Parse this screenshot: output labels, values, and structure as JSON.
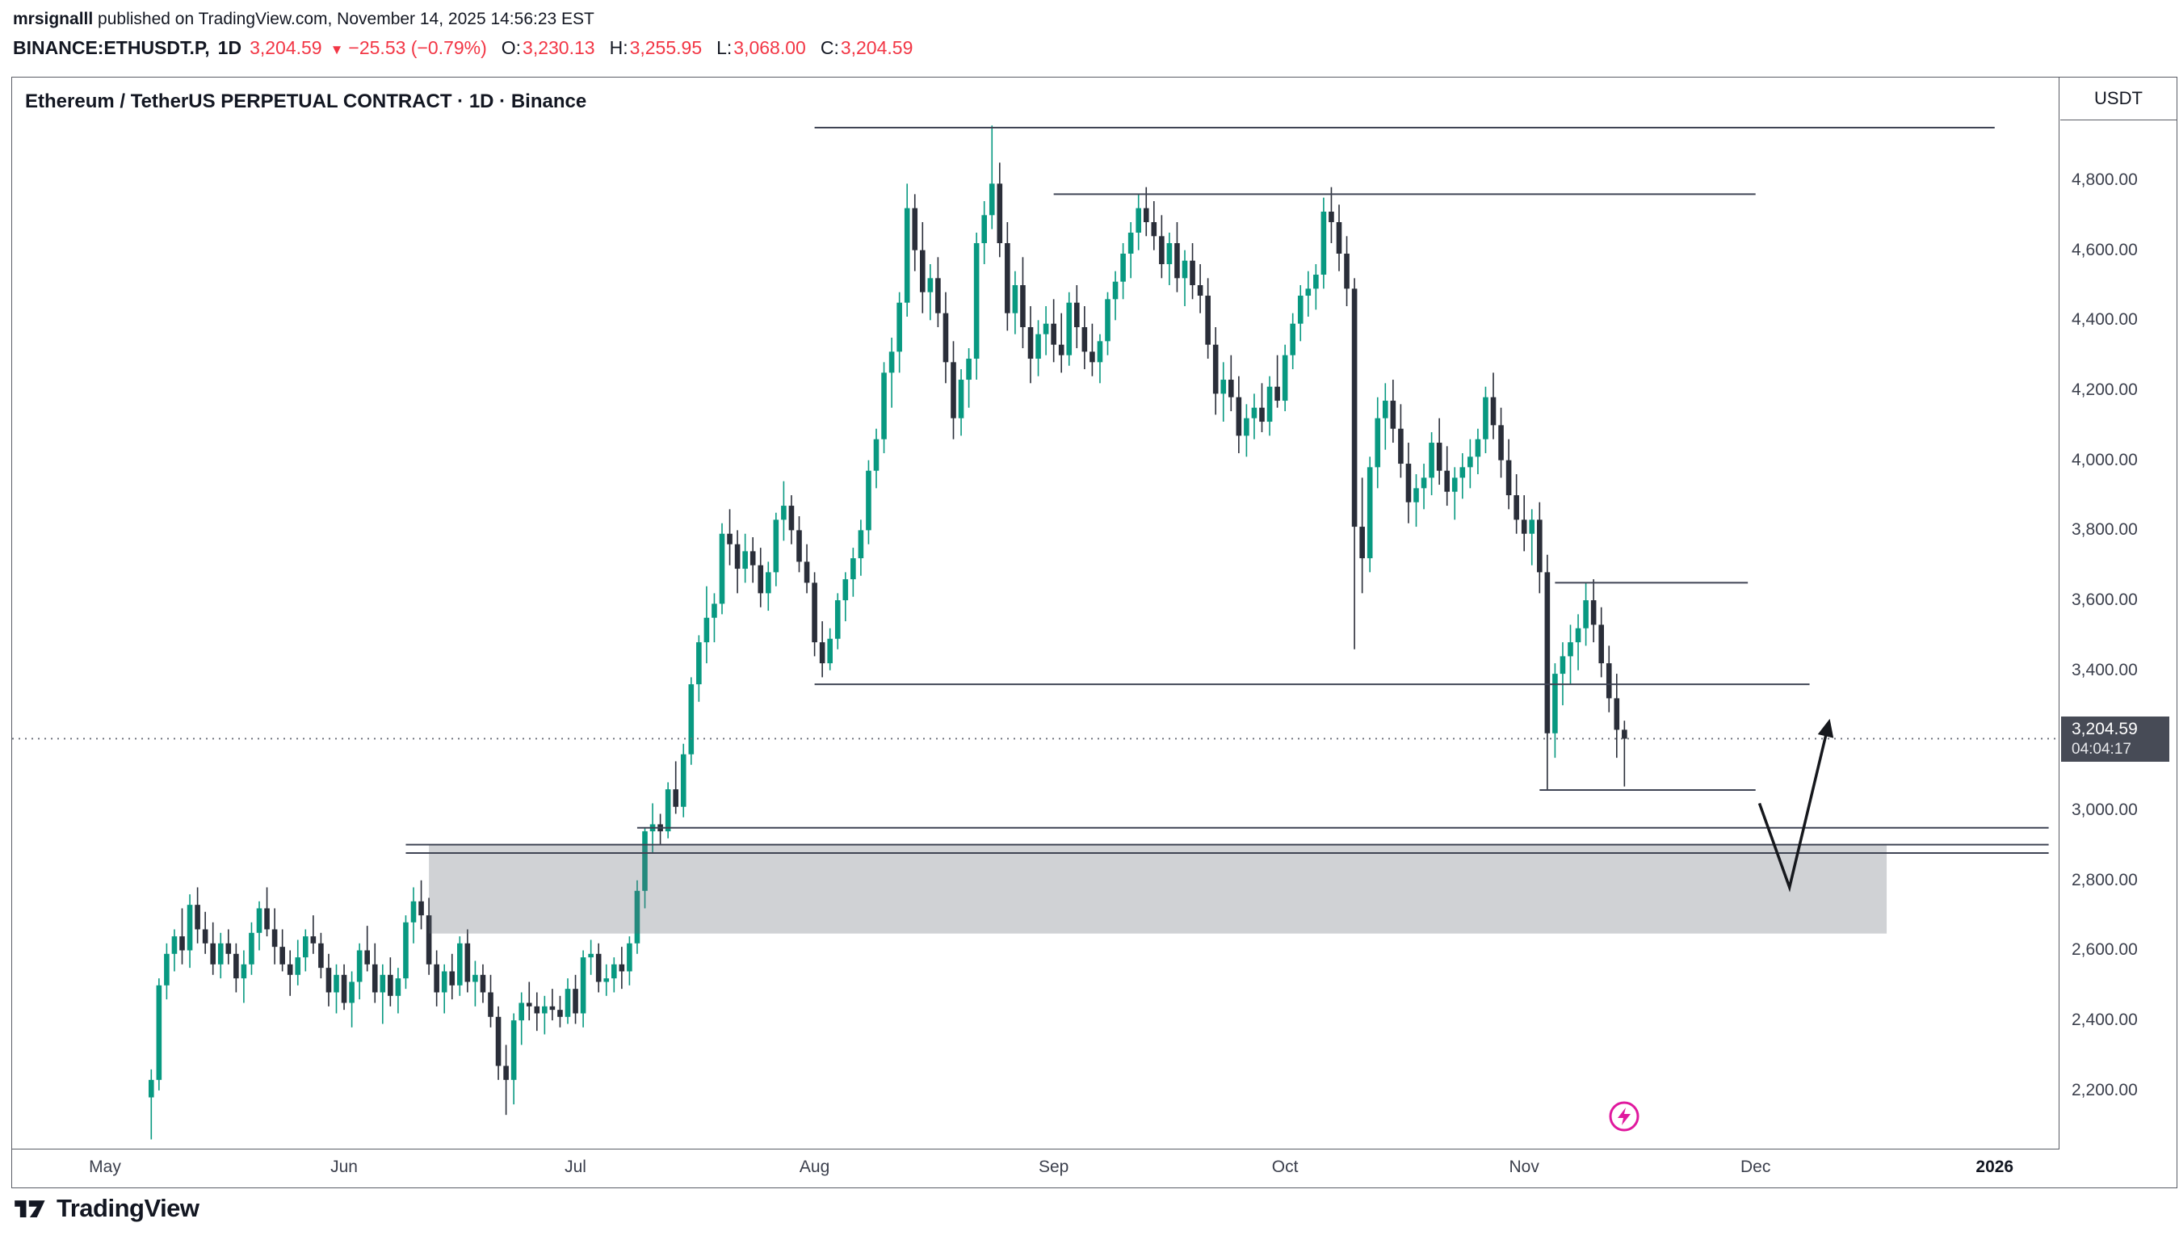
{
  "header": {
    "author": "mrsignalll",
    "published": " published on TradingView.com, November 14, 2025 14:56:23 EST",
    "symbol": "BINANCE:ETHUSDT.P,",
    "timeframe": "1D",
    "price": "3,204.59",
    "arrow": "▼",
    "change": "−25.53 (−0.79%)",
    "o_label": "O:",
    "o": "3,230.13",
    "h_label": "H:",
    "h": "3,255.95",
    "l_label": "L:",
    "l": "3,068.00",
    "c_label": "C:",
    "c": "3,204.59"
  },
  "chart": {
    "title": "Ethereum / TetherUS PERPETUAL CONTRACT · 1D · Binance",
    "unit": "USDT",
    "price_tag": {
      "price": "3,204.59",
      "countdown": "04:04:17"
    },
    "y_axis": [
      {
        "price": 4800,
        "label": "4,800.00"
      },
      {
        "price": 4600,
        "label": "4,600.00"
      },
      {
        "price": 4400,
        "label": "4,400.00"
      },
      {
        "price": 4200,
        "label": "4,200.00"
      },
      {
        "price": 4000,
        "label": "4,000.00"
      },
      {
        "price": 3800,
        "label": "3,800.00"
      },
      {
        "price": 3600,
        "label": "3,600.00"
      },
      {
        "price": 3400,
        "label": "3,400.00"
      },
      {
        "price": 3000,
        "label": "3,000.00"
      },
      {
        "price": 2800,
        "label": "2,800.00"
      },
      {
        "price": 2600,
        "label": "2,600.00"
      },
      {
        "price": 2400,
        "label": "2,400.00"
      },
      {
        "price": 2200,
        "label": "2,200.00"
      }
    ],
    "x_axis": [
      {
        "label": "May",
        "day": 0
      },
      {
        "label": "Jun",
        "day": 31
      },
      {
        "label": "Jul",
        "day": 61
      },
      {
        "label": "Aug",
        "day": 92
      },
      {
        "label": "Sep",
        "day": 123
      },
      {
        "label": "Oct",
        "day": 153
      },
      {
        "label": "Nov",
        "day": 184
      },
      {
        "label": "Dec",
        "day": 214
      },
      {
        "label": "2026",
        "day": 245,
        "bold": true
      }
    ]
  },
  "footer": {
    "brand": "TradingView"
  },
  "chart_data": {
    "type": "candlestick",
    "symbol": "BINANCE:ETHUSDT.P",
    "interval": "1D",
    "title": "Ethereum / TetherUS PERPETUAL CONTRACT · 1D · Binance",
    "last": {
      "open": 3230.13,
      "high": 3255.95,
      "low": 3068.0,
      "close": 3204.59,
      "change": -25.53,
      "change_pct": -0.79
    },
    "ylim": [
      2050,
      5220
    ],
    "start_day": 6,
    "price_line": 3204.59,
    "colors": {
      "up": "#089981",
      "down": "#2a2e39",
      "level": "#3f4454",
      "zone": "rgba(100,105,115,0.30)",
      "arrow": "#16181d",
      "price_line": "#6a6d78",
      "tag_bg": "#474b56",
      "red": "#F23645",
      "sticker": "#e0189e"
    },
    "levels": [
      {
        "price": 4950,
        "d1": 92,
        "d2": 245
      },
      {
        "price": 4760,
        "d1": 123,
        "d2": 214
      },
      {
        "price": 3650,
        "d1": 188,
        "d2": 213
      },
      {
        "price": 3360,
        "d1": 92,
        "d2": 221
      },
      {
        "price": 3058,
        "d1": 186,
        "d2": 214
      },
      {
        "price": 2950,
        "d1": 69,
        "d2": 252
      },
      {
        "price": 2902,
        "d1": 39,
        "d2": 252
      },
      {
        "price": 2878,
        "d1": 39,
        "d2": 252
      }
    ],
    "zone": {
      "p1": 2900,
      "p2": 2648,
      "d1": 42,
      "d2": 231
    },
    "arrow": {
      "points": [
        [
          214.5,
          3020
        ],
        [
          218.4,
          2780
        ],
        [
          223.5,
          3250
        ]
      ]
    },
    "ohlc": [
      [
        2180,
        2260,
        2060,
        2230
      ],
      [
        2230,
        2520,
        2200,
        2500
      ],
      [
        2500,
        2620,
        2460,
        2590
      ],
      [
        2590,
        2660,
        2540,
        2640
      ],
      [
        2640,
        2720,
        2560,
        2600
      ],
      [
        2600,
        2760,
        2550,
        2730
      ],
      [
        2730,
        2780,
        2620,
        2660
      ],
      [
        2660,
        2710,
        2590,
        2620
      ],
      [
        2620,
        2680,
        2530,
        2560
      ],
      [
        2560,
        2650,
        2520,
        2620
      ],
      [
        2620,
        2660,
        2560,
        2590
      ],
      [
        2590,
        2620,
        2480,
        2520
      ],
      [
        2520,
        2600,
        2450,
        2560
      ],
      [
        2560,
        2680,
        2530,
        2650
      ],
      [
        2650,
        2740,
        2600,
        2720
      ],
      [
        2720,
        2780,
        2640,
        2660
      ],
      [
        2660,
        2720,
        2560,
        2610
      ],
      [
        2610,
        2660,
        2540,
        2560
      ],
      [
        2560,
        2600,
        2470,
        2530
      ],
      [
        2530,
        2630,
        2500,
        2580
      ],
      [
        2580,
        2660,
        2540,
        2640
      ],
      [
        2640,
        2700,
        2590,
        2620
      ],
      [
        2620,
        2650,
        2520,
        2550
      ],
      [
        2550,
        2590,
        2440,
        2480
      ],
      [
        2480,
        2560,
        2420,
        2530
      ],
      [
        2530,
        2560,
        2430,
        2450
      ],
      [
        2450,
        2540,
        2380,
        2510
      ],
      [
        2510,
        2620,
        2460,
        2600
      ],
      [
        2600,
        2670,
        2540,
        2560
      ],
      [
        2560,
        2620,
        2450,
        2480
      ],
      [
        2480,
        2560,
        2390,
        2530
      ],
      [
        2530,
        2580,
        2440,
        2470
      ],
      [
        2470,
        2550,
        2420,
        2520
      ],
      [
        2520,
        2700,
        2490,
        2680
      ],
      [
        2680,
        2780,
        2620,
        2740
      ],
      [
        2740,
        2800,
        2660,
        2700
      ],
      [
        2700,
        2750,
        2530,
        2560
      ],
      [
        2560,
        2600,
        2440,
        2480
      ],
      [
        2480,
        2560,
        2420,
        2540
      ],
      [
        2540,
        2590,
        2460,
        2500
      ],
      [
        2500,
        2640,
        2470,
        2620
      ],
      [
        2620,
        2660,
        2480,
        2510
      ],
      [
        2510,
        2570,
        2440,
        2530
      ],
      [
        2530,
        2560,
        2450,
        2480
      ],
      [
        2480,
        2530,
        2380,
        2410
      ],
      [
        2410,
        2440,
        2230,
        2270
      ],
      [
        2270,
        2330,
        2130,
        2230
      ],
      [
        2230,
        2420,
        2160,
        2400
      ],
      [
        2400,
        2480,
        2330,
        2450
      ],
      [
        2450,
        2510,
        2400,
        2440
      ],
      [
        2440,
        2480,
        2370,
        2420
      ],
      [
        2420,
        2470,
        2360,
        2440
      ],
      [
        2440,
        2490,
        2400,
        2430
      ],
      [
        2430,
        2470,
        2380,
        2410
      ],
      [
        2410,
        2520,
        2390,
        2490
      ],
      [
        2490,
        2530,
        2390,
        2420
      ],
      [
        2420,
        2600,
        2380,
        2580
      ],
      [
        2580,
        2630,
        2530,
        2590
      ],
      [
        2590,
        2620,
        2480,
        2510
      ],
      [
        2510,
        2560,
        2470,
        2520
      ],
      [
        2520,
        2580,
        2480,
        2560
      ],
      [
        2560,
        2610,
        2490,
        2540
      ],
      [
        2540,
        2640,
        2500,
        2620
      ],
      [
        2620,
        2800,
        2590,
        2770
      ],
      [
        2770,
        2950,
        2720,
        2940
      ],
      [
        2940,
        3020,
        2880,
        2960
      ],
      [
        2960,
        2990,
        2900,
        2940
      ],
      [
        2940,
        3080,
        2920,
        3060
      ],
      [
        3060,
        3140,
        2990,
        3010
      ],
      [
        3010,
        3190,
        2980,
        3160
      ],
      [
        3160,
        3380,
        3130,
        3360
      ],
      [
        3360,
        3500,
        3310,
        3480
      ],
      [
        3480,
        3640,
        3420,
        3550
      ],
      [
        3550,
        3620,
        3480,
        3590
      ],
      [
        3590,
        3820,
        3560,
        3790
      ],
      [
        3790,
        3860,
        3700,
        3760
      ],
      [
        3760,
        3800,
        3620,
        3690
      ],
      [
        3690,
        3790,
        3650,
        3740
      ],
      [
        3740,
        3780,
        3650,
        3700
      ],
      [
        3700,
        3750,
        3580,
        3620
      ],
      [
        3620,
        3710,
        3570,
        3680
      ],
      [
        3680,
        3850,
        3640,
        3830
      ],
      [
        3830,
        3940,
        3770,
        3870
      ],
      [
        3870,
        3900,
        3760,
        3800
      ],
      [
        3800,
        3840,
        3680,
        3710
      ],
      [
        3710,
        3760,
        3620,
        3650
      ],
      [
        3650,
        3680,
        3440,
        3480
      ],
      [
        3480,
        3540,
        3380,
        3420
      ],
      [
        3420,
        3520,
        3400,
        3490
      ],
      [
        3490,
        3620,
        3460,
        3600
      ],
      [
        3600,
        3680,
        3540,
        3660
      ],
      [
        3660,
        3750,
        3610,
        3720
      ],
      [
        3720,
        3830,
        3670,
        3800
      ],
      [
        3800,
        4000,
        3760,
        3970
      ],
      [
        3970,
        4090,
        3920,
        4060
      ],
      [
        4060,
        4280,
        4020,
        4250
      ],
      [
        4250,
        4350,
        4150,
        4310
      ],
      [
        4310,
        4480,
        4250,
        4450
      ],
      [
        4450,
        4790,
        4410,
        4720
      ],
      [
        4720,
        4760,
        4540,
        4600
      ],
      [
        4600,
        4680,
        4420,
        4480
      ],
      [
        4480,
        4560,
        4400,
        4520
      ],
      [
        4520,
        4580,
        4380,
        4420
      ],
      [
        4420,
        4480,
        4220,
        4280
      ],
      [
        4280,
        4340,
        4060,
        4120
      ],
      [
        4120,
        4260,
        4070,
        4230
      ],
      [
        4230,
        4320,
        4150,
        4290
      ],
      [
        4290,
        4650,
        4230,
        4620
      ],
      [
        4620,
        4740,
        4560,
        4700
      ],
      [
        4700,
        4956,
        4660,
        4790
      ],
      [
        4790,
        4850,
        4580,
        4620
      ],
      [
        4620,
        4680,
        4370,
        4420
      ],
      [
        4420,
        4540,
        4360,
        4500
      ],
      [
        4500,
        4580,
        4320,
        4380
      ],
      [
        4380,
        4440,
        4220,
        4290
      ],
      [
        4290,
        4400,
        4240,
        4360
      ],
      [
        4360,
        4440,
        4300,
        4390
      ],
      [
        4390,
        4460,
        4280,
        4330
      ],
      [
        4330,
        4420,
        4250,
        4300
      ],
      [
        4300,
        4480,
        4270,
        4450
      ],
      [
        4450,
        4500,
        4320,
        4380
      ],
      [
        4380,
        4440,
        4260,
        4310
      ],
      [
        4310,
        4390,
        4240,
        4280
      ],
      [
        4280,
        4360,
        4220,
        4340
      ],
      [
        4340,
        4480,
        4300,
        4460
      ],
      [
        4460,
        4540,
        4400,
        4510
      ],
      [
        4510,
        4620,
        4460,
        4590
      ],
      [
        4590,
        4680,
        4520,
        4650
      ],
      [
        4650,
        4760,
        4600,
        4720
      ],
      [
        4720,
        4780,
        4640,
        4680
      ],
      [
        4680,
        4740,
        4600,
        4640
      ],
      [
        4640,
        4700,
        4520,
        4560
      ],
      [
        4560,
        4650,
        4500,
        4620
      ],
      [
        4620,
        4680,
        4480,
        4520
      ],
      [
        4520,
        4600,
        4440,
        4570
      ],
      [
        4570,
        4620,
        4460,
        4500
      ],
      [
        4500,
        4560,
        4420,
        4470
      ],
      [
        4470,
        4520,
        4290,
        4330
      ],
      [
        4330,
        4380,
        4130,
        4190
      ],
      [
        4190,
        4280,
        4110,
        4230
      ],
      [
        4230,
        4300,
        4140,
        4180
      ],
      [
        4180,
        4240,
        4020,
        4070
      ],
      [
        4070,
        4160,
        4010,
        4120
      ],
      [
        4120,
        4190,
        4060,
        4150
      ],
      [
        4150,
        4220,
        4080,
        4110
      ],
      [
        4110,
        4240,
        4070,
        4210
      ],
      [
        4210,
        4300,
        4150,
        4170
      ],
      [
        4170,
        4330,
        4140,
        4300
      ],
      [
        4300,
        4420,
        4260,
        4390
      ],
      [
        4390,
        4500,
        4340,
        4470
      ],
      [
        4470,
        4540,
        4410,
        4490
      ],
      [
        4490,
        4560,
        4430,
        4530
      ],
      [
        4530,
        4750,
        4490,
        4710
      ],
      [
        4710,
        4780,
        4620,
        4680
      ],
      [
        4680,
        4730,
        4540,
        4590
      ],
      [
        4590,
        4640,
        4440,
        4490
      ],
      [
        4490,
        4520,
        3460,
        3810
      ],
      [
        3810,
        3950,
        3620,
        3720
      ],
      [
        3720,
        4010,
        3680,
        3980
      ],
      [
        3980,
        4180,
        3920,
        4120
      ],
      [
        4120,
        4220,
        4030,
        4170
      ],
      [
        4170,
        4230,
        4050,
        4090
      ],
      [
        4090,
        4160,
        3950,
        3990
      ],
      [
        3990,
        4050,
        3820,
        3880
      ],
      [
        3880,
        3960,
        3810,
        3920
      ],
      [
        3920,
        3990,
        3860,
        3950
      ],
      [
        3950,
        4080,
        3900,
        4050
      ],
      [
        4050,
        4120,
        3930,
        3970
      ],
      [
        3970,
        4040,
        3870,
        3910
      ],
      [
        3910,
        3980,
        3830,
        3950
      ],
      [
        3950,
        4020,
        3890,
        3980
      ],
      [
        3980,
        4060,
        3920,
        4010
      ],
      [
        4010,
        4090,
        3960,
        4060
      ],
      [
        4060,
        4210,
        4020,
        4180
      ],
      [
        4180,
        4250,
        4060,
        4100
      ],
      [
        4100,
        4150,
        3950,
        4000
      ],
      [
        4000,
        4060,
        3860,
        3900
      ],
      [
        3900,
        3960,
        3790,
        3830
      ],
      [
        3830,
        3900,
        3740,
        3790
      ],
      [
        3790,
        3860,
        3700,
        3830
      ],
      [
        3830,
        3880,
        3620,
        3680
      ],
      [
        3680,
        3730,
        3058,
        3220
      ],
      [
        3220,
        3420,
        3150,
        3390
      ],
      [
        3390,
        3480,
        3300,
        3440
      ],
      [
        3440,
        3530,
        3360,
        3480
      ],
      [
        3480,
        3560,
        3400,
        3520
      ],
      [
        3520,
        3650,
        3470,
        3600
      ],
      [
        3600,
        3660,
        3480,
        3530
      ],
      [
        3530,
        3580,
        3380,
        3420
      ],
      [
        3420,
        3470,
        3280,
        3320
      ],
      [
        3320,
        3390,
        3150,
        3230
      ],
      [
        3230.13,
        3255.95,
        3068,
        3204.59
      ]
    ]
  }
}
